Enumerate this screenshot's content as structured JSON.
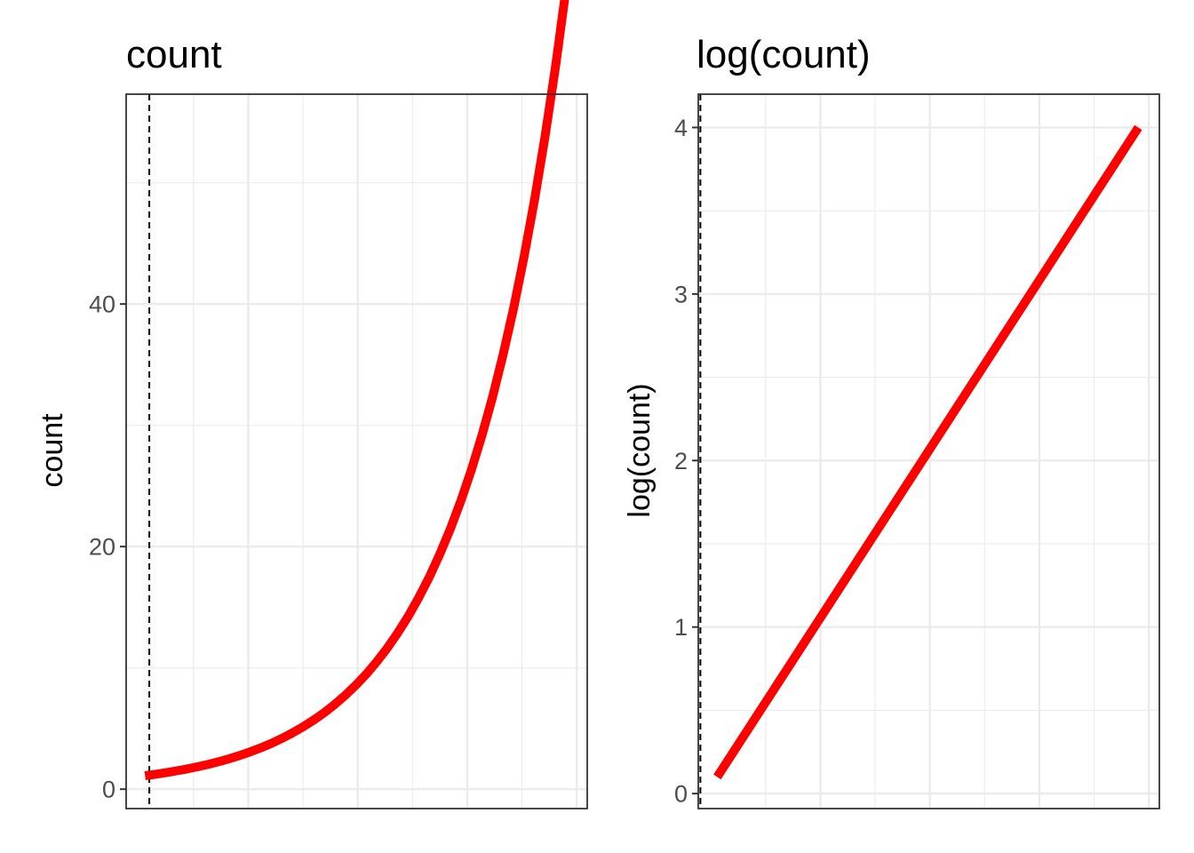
{
  "chart_data": [
    {
      "type": "line",
      "title": "count",
      "xlabel": "",
      "ylabel": "count",
      "x": [
        1,
        1.5,
        2,
        2.5,
        3,
        3.5,
        4,
        4.5,
        5,
        5.5,
        6,
        6.5,
        7,
        7.5,
        8,
        8.5,
        9,
        9.5,
        10,
        10.5,
        11,
        11.5,
        12,
        12.5,
        13,
        13.5,
        14,
        14.5,
        15,
        15.5,
        16,
        16.5,
        17,
        17.5,
        18,
        18.5,
        19,
        19.5,
        20,
        20.5,
        21
      ],
      "series": [
        {
          "values": [
            1.11,
            1.23,
            1.36,
            1.51,
            1.67,
            1.85,
            2.05,
            2.27,
            2.51,
            2.78,
            3.08,
            3.41,
            3.78,
            4.19,
            4.64,
            5.14,
            5.69,
            6.3,
            6.98,
            7.73,
            8.56,
            9.48,
            10.5,
            11.63,
            12.88,
            14.27,
            15.8,
            17.5,
            19.38,
            21.47,
            23.78,
            26.34,
            29.17,
            32.31,
            35.79,
            39.64,
            43.9,
            48.63,
            53.86,
            59.66,
            66.08
          ],
          "color": "#ff0000"
        }
      ],
      "xlim": [
        0.1,
        22
      ],
      "ylim": [
        -1.6,
        57.3
      ],
      "yticks": [
        0,
        20,
        40
      ],
      "ytick_labels": [
        "0",
        "20",
        "40"
      ],
      "yminor": [
        10,
        30,
        50
      ],
      "xgrid_major": [
        5.9,
        11.1,
        16.3,
        21.5
      ],
      "xgrid_minor": [
        3.3,
        8.5,
        13.7,
        18.9
      ],
      "vline_x": 1.2,
      "grid": true,
      "legend": "none"
    },
    {
      "type": "line",
      "title": "log(count)",
      "xlabel": "",
      "ylabel": "log(count)",
      "x": [
        1,
        21
      ],
      "series": [
        {
          "values": [
            0.1,
            4.0
          ],
          "color": "#ff0000"
        }
      ],
      "xlim": [
        0.1,
        22
      ],
      "ylim": [
        -0.09,
        4.2
      ],
      "yticks": [
        0,
        1,
        2,
        3,
        4
      ],
      "ytick_labels": [
        "0",
        "1",
        "2",
        "3",
        "4"
      ],
      "yminor": [
        0.5,
        1.5,
        2.5,
        3.5
      ],
      "xgrid_major": [
        5.9,
        11.1,
        16.3,
        21.5
      ],
      "xgrid_minor": [
        3.3,
        8.5,
        13.7,
        18.9
      ],
      "vline_x": 0.2,
      "grid": true,
      "legend": "none"
    }
  ]
}
